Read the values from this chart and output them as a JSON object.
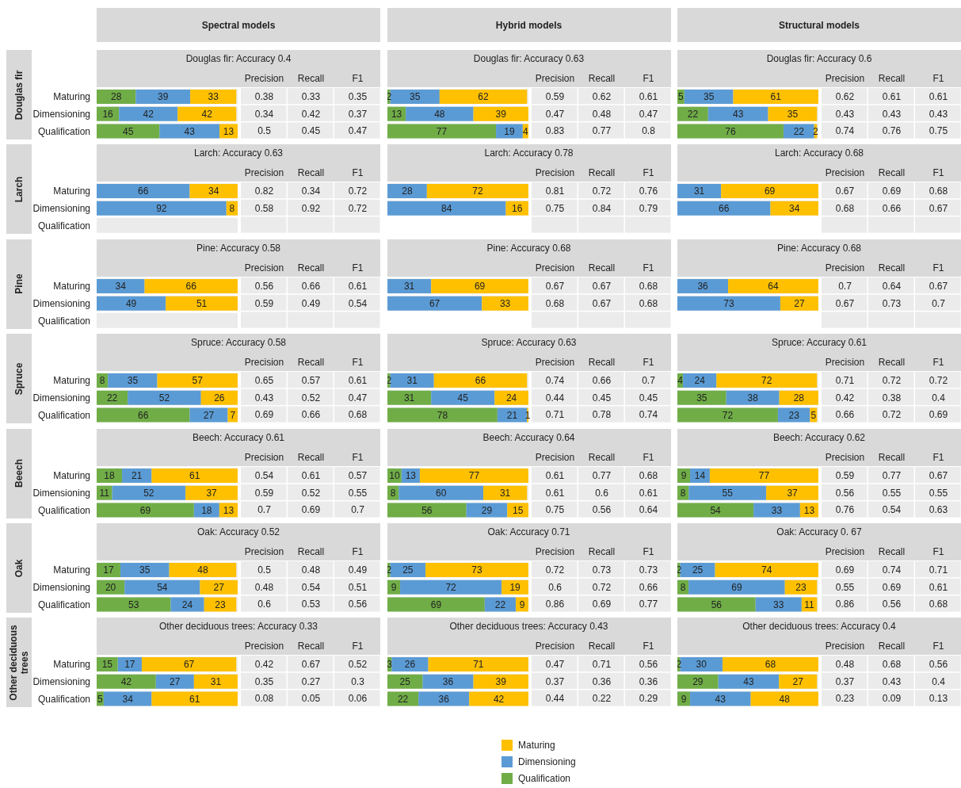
{
  "chart_data": [
    {
      "type": "other",
      "categories": [
        "Spectral models",
        "Hybrid models",
        "Structural models"
      ],
      "y_categories": [
        "Douglas fir",
        "Larch",
        "Pine",
        "Spruce",
        "Beech",
        "Oak",
        "Other deciduous trees"
      ]
    },
    {
      "type": "bar",
      "title": "Douglas fir: Accuracy 0.4",
      "categories": [
        "Maturing",
        "Dimensioning",
        "Qualification"
      ],
      "orientation": "horizontal",
      "stacked": true,
      "data_labels": true,
      "tick_labels": "y",
      "series": [
        {
          "color": "#70ad47",
          "values": [
            28,
            16,
            45
          ]
        },
        {
          "color": "#5b9bd5",
          "values": [
            39,
            42,
            43
          ]
        },
        {
          "color": "#ffc000",
          "values": [
            33,
            42,
            13
          ]
        }
      ],
      "annotations": [
        "Precision",
        "Recall",
        "F1",
        "0.38",
        "0.33",
        "0.35",
        "0.34",
        "0.42",
        "0.37",
        "0.5",
        "0.45",
        "0.47"
      ]
    },
    {
      "type": "bar",
      "title": "Douglas fir: Accuracy 0.63",
      "categories": [
        null,
        null,
        null
      ],
      "orientation": "horizontal",
      "stacked": true,
      "data_labels": true,
      "tick_labels": false,
      "series": [
        {
          "color": "#70ad47",
          "values": [
            2,
            13,
            77
          ]
        },
        {
          "color": "#5b9bd5",
          "values": [
            35,
            48,
            19
          ]
        },
        {
          "color": "#ffc000",
          "values": [
            62,
            39,
            4
          ]
        }
      ],
      "annotations": [
        "Precision",
        "Recall",
        "F1",
        "0.59",
        "0.62",
        "0.61",
        "0.47",
        "0.48",
        "0.47",
        "0.83",
        "0.77",
        "0.8"
      ]
    },
    {
      "type": "bar",
      "title": "Douglas fir: Accuracy 0.6",
      "categories": [
        null,
        null,
        null
      ],
      "orientation": "horizontal",
      "stacked": true,
      "data_labels": true,
      "tick_labels": false,
      "series": [
        {
          "color": "#70ad47",
          "values": [
            5,
            22,
            76
          ]
        },
        {
          "color": "#5b9bd5",
          "values": [
            35,
            43,
            22
          ]
        },
        {
          "color": "#ffc000",
          "values": [
            61,
            35,
            2
          ]
        }
      ],
      "annotations": [
        "Precision",
        "Recall",
        "F1",
        "0.62",
        "0.61",
        "0.61",
        "0.43",
        "0.43",
        "0.43",
        "0.74",
        "0.76",
        "0.75"
      ]
    },
    {
      "type": "bar",
      "title": "Larch: Accuracy 0.63",
      "categories": [
        "Maturing",
        "Dimensioning",
        "Qualification"
      ],
      "orientation": "horizontal",
      "stacked": true,
      "data_labels": true,
      "tick_labels": "y",
      "series": [
        {
          "color": "#5b9bd5",
          "values": [
            66,
            92,
            null
          ]
        },
        {
          "color": "#ffc000",
          "values": [
            34,
            8,
            null
          ]
        }
      ],
      "annotations": [
        "Precision",
        "Recall",
        "F1",
        "0.82",
        "0.34",
        "0.72",
        "0.58",
        "0.92",
        "0.72"
      ]
    },
    {
      "type": "bar",
      "title": "Larch: Accuracy 0.78",
      "categories": [
        null,
        null
      ],
      "orientation": "horizontal",
      "stacked": true,
      "data_labels": true,
      "tick_labels": false,
      "series": [
        {
          "color": "#5b9bd5",
          "values": [
            28,
            84
          ]
        },
        {
          "color": "#ffc000",
          "values": [
            72,
            16
          ]
        }
      ],
      "annotations": [
        "Precision",
        "Recall",
        "F1",
        "0.81",
        "0.72",
        "0.76",
        "0.75",
        "0.84",
        "0.79"
      ]
    },
    {
      "type": "bar",
      "title": "Larch: Accuracy 0.68",
      "categories": [
        null,
        null
      ],
      "orientation": "horizontal",
      "stacked": true,
      "data_labels": true,
      "tick_labels": false,
      "series": [
        {
          "color": "#5b9bd5",
          "values": [
            31,
            66
          ]
        },
        {
          "color": "#ffc000",
          "values": [
            69,
            34
          ]
        }
      ],
      "annotations": [
        "Precision",
        "Recall",
        "F1",
        "0.67",
        "0.69",
        "0.68",
        "0.68",
        "0.66",
        "0.67"
      ]
    },
    {
      "type": "bar",
      "title": "Pine: Accuracy 0.58",
      "categories": [
        "Maturing",
        "Dimensioning",
        "Qualification"
      ],
      "orientation": "horizontal",
      "stacked": true,
      "data_labels": true,
      "tick_labels": "y",
      "series": [
        {
          "color": "#5b9bd5",
          "values": [
            34,
            49,
            null
          ]
        },
        {
          "color": "#ffc000",
          "values": [
            66,
            51,
            null
          ]
        }
      ],
      "annotations": [
        "Precision",
        "Recall",
        "F1",
        "0.56",
        "0.66",
        "0.61",
        "0.59",
        "0.49",
        "0.54"
      ]
    },
    {
      "type": "bar",
      "title": "Pine: Accuracy 0.68",
      "categories": [
        null,
        null
      ],
      "orientation": "horizontal",
      "stacked": true,
      "data_labels": true,
      "tick_labels": false,
      "series": [
        {
          "color": "#5b9bd5",
          "values": [
            31,
            67
          ]
        },
        {
          "color": "#ffc000",
          "values": [
            69,
            33
          ]
        }
      ],
      "annotations": [
        "Precision",
        "Recall",
        "F1",
        "0.67",
        "0.67",
        "0.68",
        "0.68",
        "0.67",
        "0.68"
      ]
    },
    {
      "type": "bar",
      "title": "Pine: Accuracy 0.68",
      "categories": [
        null,
        null
      ],
      "orientation": "horizontal",
      "stacked": true,
      "data_labels": true,
      "tick_labels": false,
      "series": [
        {
          "color": "#5b9bd5",
          "values": [
            36,
            73
          ]
        },
        {
          "color": "#ffc000",
          "values": [
            64,
            27
          ]
        }
      ],
      "annotations": [
        "Precision",
        "Recall",
        "F1",
        "0.7",
        "0.64",
        "0.67",
        "0.67",
        "0.73",
        "0.7"
      ]
    },
    {
      "type": "bar",
      "title": "Spruce: Accuracy 0.58",
      "categories": [
        "Maturing",
        "Dimensioning",
        "Qualification"
      ],
      "orientation": "horizontal",
      "stacked": true,
      "data_labels": true,
      "tick_labels": "y",
      "series": [
        {
          "color": "#70ad47",
          "values": [
            8,
            22,
            66
          ]
        },
        {
          "color": "#5b9bd5",
          "values": [
            35,
            52,
            27
          ]
        },
        {
          "color": "#ffc000",
          "values": [
            57,
            26,
            7
          ]
        }
      ],
      "annotations": [
        "Precision",
        "Recall",
        "F1",
        "0.65",
        "0.57",
        "0.61",
        "0.43",
        "0.52",
        "0.47",
        "0.69",
        "0.66",
        "0.68"
      ]
    },
    {
      "type": "bar",
      "title": "Spruce: Accuracy 0.63",
      "categories": [
        null,
        null,
        null
      ],
      "orientation": "horizontal",
      "stacked": true,
      "data_labels": true,
      "tick_labels": false,
      "series": [
        {
          "color": "#70ad47",
          "values": [
            2,
            31,
            78
          ]
        },
        {
          "color": "#5b9bd5",
          "values": [
            31,
            45,
            21
          ]
        },
        {
          "color": "#ffc000",
          "values": [
            66,
            24,
            1
          ]
        }
      ],
      "annotations": [
        "Precision",
        "Recall",
        "F1",
        "0.74",
        "0.66",
        "0.7",
        "0.44",
        "0.45",
        "0.45",
        "0.71",
        "0.78",
        "0.74"
      ]
    },
    {
      "type": "bar",
      "title": "Spruce: Accuracy 0.61",
      "categories": [
        null,
        null,
        null
      ],
      "orientation": "horizontal",
      "stacked": true,
      "data_labels": true,
      "tick_labels": false,
      "series": [
        {
          "color": "#70ad47",
          "values": [
            4,
            35,
            72
          ]
        },
        {
          "color": "#5b9bd5",
          "values": [
            24,
            38,
            23
          ]
        },
        {
          "color": "#ffc000",
          "values": [
            72,
            28,
            5
          ]
        }
      ],
      "annotations": [
        "Precision",
        "Recall",
        "F1",
        "0.71",
        "0.72",
        "0.72",
        "0.42",
        "0.38",
        "0.4",
        "0.66",
        "0.72",
        "0.69"
      ]
    },
    {
      "type": "bar",
      "title": "Beech: Accuracy 0.61",
      "categories": [
        "Maturing",
        "Dimensioning",
        "Qualification"
      ],
      "orientation": "horizontal",
      "stacked": true,
      "data_labels": true,
      "tick_labels": "y",
      "series": [
        {
          "color": "#70ad47",
          "values": [
            18,
            11,
            69
          ]
        },
        {
          "color": "#5b9bd5",
          "values": [
            21,
            52,
            18
          ]
        },
        {
          "color": "#ffc000",
          "values": [
            61,
            37,
            13
          ]
        }
      ],
      "annotations": [
        "Precision",
        "Recall",
        "F1",
        "0.54",
        "0.61",
        "0.57",
        "0.59",
        "0.52",
        "0.55",
        "0.7",
        "0.69",
        "0.7"
      ]
    },
    {
      "type": "bar",
      "title": "Beech: Accuracy 0.64",
      "categories": [
        null,
        null,
        null
      ],
      "orientation": "horizontal",
      "stacked": true,
      "data_labels": true,
      "tick_labels": false,
      "series": [
        {
          "color": "#70ad47",
          "values": [
            10,
            8,
            56
          ]
        },
        {
          "color": "#5b9bd5",
          "values": [
            13,
            60,
            29
          ]
        },
        {
          "color": "#ffc000",
          "values": [
            77,
            31,
            15
          ]
        }
      ],
      "annotations": [
        "Precision",
        "Recall",
        "F1",
        "0.61",
        "0.77",
        "0.68",
        "0.61",
        "0.6",
        "0.61",
        "0.75",
        "0.56",
        "0.64"
      ]
    },
    {
      "type": "bar",
      "title": "Beech: Accuracy 0.62",
      "categories": [
        null,
        null,
        null
      ],
      "orientation": "horizontal",
      "stacked": true,
      "data_labels": true,
      "tick_labels": false,
      "series": [
        {
          "color": "#70ad47",
          "values": [
            9,
            8,
            54
          ]
        },
        {
          "color": "#5b9bd5",
          "values": [
            14,
            55,
            33
          ]
        },
        {
          "color": "#ffc000",
          "values": [
            77,
            37,
            13
          ]
        }
      ],
      "annotations": [
        "Precision",
        "Recall",
        "F1",
        "0.59",
        "0.77",
        "0.67",
        "0.56",
        "0.55",
        "0.55",
        "0.76",
        "0.54",
        "0.63"
      ]
    },
    {
      "type": "bar",
      "title": "Oak: Accuracy 0.52",
      "categories": [
        "Maturing",
        "Dimensioning",
        "Qualification"
      ],
      "orientation": "horizontal",
      "stacked": true,
      "data_labels": true,
      "tick_labels": "y",
      "series": [
        {
          "color": "#70ad47",
          "values": [
            17,
            20,
            53
          ]
        },
        {
          "color": "#5b9bd5",
          "values": [
            35,
            54,
            24
          ]
        },
        {
          "color": "#ffc000",
          "values": [
            48,
            27,
            23
          ]
        }
      ],
      "annotations": [
        "Precision",
        "Recall",
        "F1",
        "0.5",
        "0.48",
        "0.49",
        "0.48",
        "0.54",
        "0.51",
        "0.6",
        "0.53",
        "0.56"
      ]
    },
    {
      "type": "bar",
      "title": "Oak: Accuracy 0.71",
      "categories": [
        null,
        null,
        null
      ],
      "orientation": "horizontal",
      "stacked": true,
      "data_labels": true,
      "tick_labels": false,
      "series": [
        {
          "color": "#70ad47",
          "values": [
            2,
            9,
            69
          ]
        },
        {
          "color": "#5b9bd5",
          "values": [
            25,
            72,
            22
          ]
        },
        {
          "color": "#ffc000",
          "values": [
            73,
            19,
            9
          ]
        }
      ],
      "annotations": [
        "Precision",
        "Recall",
        "F1",
        "0.72",
        "0.73",
        "0.73",
        "0.6",
        "0.72",
        "0.66",
        "0.86",
        "0.69",
        "0.77"
      ]
    },
    {
      "type": "bar",
      "title": "Oak: Accuracy 0. 67",
      "categories": [
        null,
        null,
        null
      ],
      "orientation": "horizontal",
      "stacked": true,
      "data_labels": true,
      "tick_labels": false,
      "series": [
        {
          "color": "#70ad47",
          "values": [
            2,
            8,
            56
          ]
        },
        {
          "color": "#5b9bd5",
          "values": [
            25,
            69,
            33
          ]
        },
        {
          "color": "#ffc000",
          "values": [
            74,
            23,
            11
          ]
        }
      ],
      "annotations": [
        "Precision",
        "Recall",
        "F1",
        "0.69",
        "0.74",
        "0.71",
        "0.55",
        "0.69",
        "0.61",
        "0.86",
        "0.56",
        "0.68"
      ]
    },
    {
      "type": "bar",
      "title": "Other deciduous trees: Accuracy 0.33",
      "categories": [
        "Maturing",
        "Dimensioning",
        "Qualification"
      ],
      "orientation": "horizontal",
      "stacked": true,
      "data_labels": true,
      "tick_labels": "y",
      "series": [
        {
          "color": "#70ad47",
          "values": [
            15,
            42,
            5
          ]
        },
        {
          "color": "#5b9bd5",
          "values": [
            17,
            27,
            34
          ]
        },
        {
          "color": "#ffc000",
          "values": [
            67,
            31,
            61
          ]
        }
      ],
      "annotations": [
        "Precision",
        "Recall",
        "F1",
        "0.42",
        "0.67",
        "0.52",
        "0.35",
        "0.27",
        "0.3",
        "0.08",
        "0.05",
        "0.06"
      ]
    },
    {
      "type": "bar",
      "title": "Other deciduous trees: Accuracy 0.43",
      "categories": [
        null,
        null,
        null
      ],
      "orientation": "horizontal",
      "stacked": true,
      "data_labels": true,
      "tick_labels": false,
      "series": [
        {
          "color": "#70ad47",
          "values": [
            3,
            25,
            22
          ]
        },
        {
          "color": "#5b9bd5",
          "values": [
            26,
            36,
            36
          ]
        },
        {
          "color": "#ffc000",
          "values": [
            71,
            39,
            42
          ]
        }
      ],
      "annotations": [
        "Precision",
        "Recall",
        "F1",
        "0.47",
        "0.71",
        "0.56",
        "0.37",
        "0.36",
        "0.36",
        "0.44",
        "0.22",
        "0.29"
      ]
    },
    {
      "type": "bar",
      "title": "Other deciduous trees: Accuracy 0.4",
      "categories": [
        null,
        null,
        null
      ],
      "orientation": "horizontal",
      "stacked": true,
      "data_labels": true,
      "tick_labels": false,
      "legend": "bottom",
      "series": [
        {
          "name": "Qualification",
          "color": "#70ad47",
          "values": [
            2,
            29,
            9
          ]
        },
        {
          "name": "Dimensioning",
          "color": "#5b9bd5",
          "values": [
            30,
            43,
            43
          ]
        },
        {
          "name": "Maturing",
          "color": "#ffc000",
          "values": [
            68,
            27,
            48
          ]
        }
      ],
      "annotations": [
        "Precision",
        "Recall",
        "F1",
        "0.48",
        "0.68",
        "0.56",
        "0.37",
        "0.43",
        "0.4",
        "0.23",
        "0.09",
        "0.13"
      ]
    }
  ]
}
